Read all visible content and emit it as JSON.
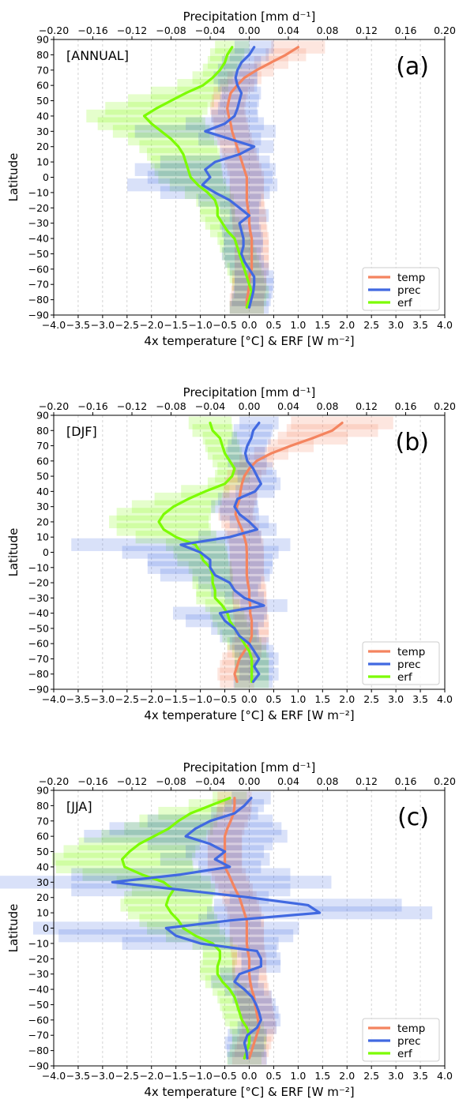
{
  "colors": {
    "temp": "#f4845f",
    "prec": "#4169e1",
    "erf": "#7cfc00",
    "grid": "#c8c8c8"
  },
  "chart_data": [
    {
      "type": "line",
      "panel_label": "(a)",
      "season_label": "[ANNUAL]",
      "xlabel": "4x temperature [°C] & ERF [W m⁻²]",
      "xlabel_top": "Precipitation [mm d⁻¹]",
      "ylabel": "Latitude",
      "xlim": [
        -4.0,
        4.0
      ],
      "xlim_top": [
        -0.2,
        0.2
      ],
      "ylim": [
        -90,
        90
      ],
      "xticks": [
        "−4.0",
        "−3.5",
        "−3.0",
        "−2.5",
        "−2.0",
        "−1.5",
        "−1.0",
        "−0.5",
        "0.0",
        "0.5",
        "1.0",
        "1.5",
        "2.0",
        "2.5",
        "3.0",
        "3.5",
        "4.0"
      ],
      "xticks_top": [
        "−0.20",
        "−0.16",
        "−0.12",
        "−0.08",
        "−0.04",
        "0.00",
        "0.04",
        "0.08",
        "0.12",
        "0.16",
        "0.20"
      ],
      "yticks": [
        "90",
        "80",
        "70",
        "60",
        "50",
        "40",
        "30",
        "20",
        "10",
        "0",
        "−10",
        "−20",
        "−30",
        "−40",
        "−50",
        "−60",
        "−70",
        "−80",
        "−90"
      ],
      "grid": "vertical dashed",
      "legend": {
        "position": "bottom-right",
        "entries": [
          "temp",
          "prec",
          "erf"
        ]
      },
      "series": [
        {
          "name": "temp",
          "axis": "bottom",
          "lat": [
            85,
            80,
            75,
            70,
            65,
            60,
            55,
            50,
            45,
            40,
            35,
            30,
            25,
            20,
            15,
            10,
            5,
            0,
            -5,
            -10,
            -15,
            -20,
            -25,
            -30,
            -35,
            -40,
            -45,
            -50,
            -55,
            -60,
            -65,
            -70,
            -75,
            -80,
            -85
          ],
          "values": [
            1.0,
            0.75,
            0.45,
            0.15,
            -0.1,
            -0.25,
            -0.38,
            -0.42,
            -0.45,
            -0.42,
            -0.38,
            -0.35,
            -0.3,
            -0.25,
            -0.2,
            -0.15,
            -0.1,
            -0.05,
            -0.05,
            -0.05,
            -0.05,
            -0.03,
            0.0,
            0.0,
            0.02,
            0.05,
            0.05,
            0.05,
            0.05,
            0.05,
            0.0,
            0.0,
            -0.02,
            -0.05,
            -0.05
          ]
        },
        {
          "name": "prec",
          "axis": "top",
          "lat": [
            85,
            80,
            75,
            70,
            65,
            60,
            55,
            50,
            45,
            40,
            35,
            30,
            25,
            20,
            15,
            10,
            5,
            0,
            -5,
            -10,
            -15,
            -20,
            -25,
            -30,
            -35,
            -40,
            -45,
            -50,
            -55,
            -60,
            -65,
            -70,
            -75,
            -80,
            -85
          ],
          "values": [
            0.005,
            0.0,
            -0.008,
            -0.012,
            -0.014,
            -0.012,
            -0.008,
            -0.01,
            -0.012,
            -0.015,
            -0.025,
            -0.045,
            -0.02,
            0.005,
            -0.01,
            -0.035,
            -0.045,
            -0.04,
            -0.048,
            -0.035,
            -0.02,
            -0.01,
            0.0,
            -0.01,
            -0.008,
            -0.006,
            -0.006,
            -0.008,
            -0.005,
            0.0,
            0.005,
            0.005,
            0.004,
            0.002,
            0.0
          ]
        },
        {
          "name": "erf",
          "axis": "bottom",
          "lat": [
            85,
            80,
            75,
            70,
            65,
            60,
            55,
            50,
            45,
            40,
            35,
            30,
            25,
            20,
            15,
            10,
            5,
            0,
            -5,
            -10,
            -15,
            -20,
            -25,
            -30,
            -35,
            -40,
            -45,
            -50,
            -55,
            -60,
            -65,
            -70,
            -75,
            -80,
            -85
          ],
          "values": [
            -0.35,
            -0.45,
            -0.5,
            -0.6,
            -0.75,
            -0.95,
            -1.3,
            -1.6,
            -1.9,
            -2.15,
            -2.0,
            -1.8,
            -1.6,
            -1.45,
            -1.35,
            -1.3,
            -1.25,
            -1.2,
            -1.05,
            -0.85,
            -0.7,
            -0.65,
            -0.65,
            -0.55,
            -0.45,
            -0.3,
            -0.25,
            -0.2,
            -0.15,
            -0.1,
            -0.05,
            0.0,
            0.05,
            0.0,
            -0.05
          ]
        }
      ]
    },
    {
      "type": "line",
      "panel_label": "(b)",
      "season_label": "[DJF]",
      "xlabel": "4x temperature [°C] & ERF [W m⁻²]",
      "xlabel_top": "Precipitation [mm d⁻¹]",
      "ylabel": "Latitude",
      "xlim": [
        -4.0,
        4.0
      ],
      "xlim_top": [
        -0.2,
        0.2
      ],
      "ylim": [
        -90,
        90
      ],
      "xticks": [
        "−4.0",
        "−3.5",
        "−3.0",
        "−2.5",
        "−2.0",
        "−1.5",
        "−1.0",
        "−0.5",
        "0.0",
        "0.5",
        "1.0",
        "1.5",
        "2.0",
        "2.5",
        "3.0",
        "3.5",
        "4.0"
      ],
      "xticks_top": [
        "−0.20",
        "−0.16",
        "−0.12",
        "−0.08",
        "−0.04",
        "0.00",
        "0.04",
        "0.08",
        "0.12",
        "0.16",
        "0.20"
      ],
      "yticks": [
        "90",
        "80",
        "70",
        "60",
        "50",
        "40",
        "30",
        "20",
        "10",
        "0",
        "−10",
        "−20",
        "−30",
        "−40",
        "−50",
        "−60",
        "−70",
        "−80",
        "−90"
      ],
      "grid": "vertical dashed",
      "legend": {
        "position": "bottom-right",
        "entries": [
          "temp",
          "prec",
          "erf"
        ]
      },
      "series": [
        {
          "name": "temp",
          "axis": "bottom",
          "lat": [
            85,
            80,
            75,
            70,
            65,
            60,
            55,
            50,
            45,
            40,
            35,
            30,
            25,
            20,
            15,
            10,
            5,
            0,
            -5,
            -10,
            -15,
            -20,
            -25,
            -30,
            -35,
            -40,
            -45,
            -50,
            -55,
            -60,
            -65,
            -70,
            -75,
            -80,
            -85
          ],
          "values": [
            1.9,
            1.7,
            1.3,
            0.85,
            0.45,
            0.15,
            0.0,
            -0.1,
            -0.15,
            -0.18,
            -0.2,
            -0.25,
            -0.28,
            -0.22,
            -0.15,
            -0.1,
            -0.06,
            -0.05,
            -0.05,
            -0.05,
            -0.05,
            -0.03,
            0.0,
            0.0,
            0.02,
            0.02,
            0.05,
            0.05,
            0.05,
            0.0,
            -0.1,
            -0.2,
            -0.25,
            -0.3,
            -0.25
          ]
        },
        {
          "name": "prec",
          "axis": "top",
          "lat": [
            85,
            80,
            75,
            70,
            65,
            60,
            55,
            50,
            45,
            40,
            35,
            30,
            25,
            20,
            15,
            10,
            5,
            0,
            -5,
            -10,
            -15,
            -20,
            -25,
            -30,
            -35,
            -40,
            -45,
            -50,
            -55,
            -60,
            -65,
            -70,
            -75,
            -80,
            -85
          ],
          "values": [
            0.01,
            0.004,
            0.002,
            -0.002,
            -0.004,
            -0.002,
            0.004,
            0.008,
            0.012,
            0.006,
            -0.012,
            -0.015,
            -0.01,
            0.0,
            0.008,
            -0.02,
            -0.07,
            -0.05,
            -0.04,
            -0.04,
            -0.035,
            -0.02,
            -0.015,
            -0.005,
            0.015,
            -0.03,
            -0.025,
            -0.015,
            -0.01,
            0.0,
            0.005,
            0.01,
            0.005,
            0.01,
            0.004
          ]
        },
        {
          "name": "erf",
          "axis": "bottom",
          "lat": [
            85,
            80,
            75,
            70,
            65,
            60,
            55,
            50,
            45,
            40,
            35,
            30,
            25,
            20,
            15,
            10,
            5,
            0,
            -5,
            -10,
            -15,
            -20,
            -25,
            -30,
            -35,
            -40,
            -45,
            -50,
            -55,
            -60,
            -65,
            -70,
            -75,
            -80,
            -85
          ],
          "values": [
            -0.8,
            -0.75,
            -0.6,
            -0.55,
            -0.5,
            -0.4,
            -0.3,
            -0.35,
            -0.5,
            -0.9,
            -1.25,
            -1.55,
            -1.75,
            -1.85,
            -1.75,
            -1.5,
            -1.1,
            -1.0,
            -0.95,
            -0.8,
            -0.75,
            -0.75,
            -0.7,
            -0.7,
            -0.55,
            -0.45,
            -0.4,
            -0.3,
            -0.2,
            -0.1,
            0.0,
            0.05,
            0.05,
            0.05,
            0.05
          ]
        }
      ]
    },
    {
      "type": "line",
      "panel_label": "(c)",
      "season_label": "[JJA]",
      "xlabel": "4x temperature [°C] & ERF [W m⁻²]",
      "xlabel_top": "Precipitation [mm d⁻¹]",
      "ylabel": "Latitude",
      "xlim": [
        -4.0,
        4.0
      ],
      "xlim_top": [
        -0.2,
        0.2
      ],
      "ylim": [
        -90,
        90
      ],
      "xticks": [
        "−4.0",
        "−3.5",
        "−3.0",
        "−2.5",
        "−2.0",
        "−1.5",
        "−1.0",
        "−0.5",
        "0.0",
        "0.5",
        "1.0",
        "1.5",
        "2.0",
        "2.5",
        "3.0",
        "3.5",
        "4.0"
      ],
      "xticks_top": [
        "−0.20",
        "−0.16",
        "−0.12",
        "−0.08",
        "−0.04",
        "0.00",
        "0.04",
        "0.08",
        "0.12",
        "0.16",
        "0.20"
      ],
      "yticks": [
        "90",
        "80",
        "70",
        "60",
        "50",
        "40",
        "30",
        "20",
        "10",
        "0",
        "−10",
        "−20",
        "−30",
        "−40",
        "−50",
        "−60",
        "−70",
        "−80",
        "−90"
      ],
      "grid": "vertical dashed",
      "legend": {
        "position": "bottom-right",
        "entries": [
          "temp",
          "prec",
          "erf"
        ]
      },
      "series": [
        {
          "name": "temp",
          "axis": "bottom",
          "lat": [
            85,
            80,
            75,
            70,
            65,
            60,
            55,
            50,
            45,
            40,
            35,
            30,
            25,
            20,
            15,
            10,
            5,
            0,
            -5,
            -10,
            -15,
            -20,
            -25,
            -30,
            -35,
            -40,
            -45,
            -50,
            -55,
            -60,
            -65,
            -70,
            -75,
            -80,
            -85
          ],
          "values": [
            -0.3,
            -0.3,
            -0.32,
            -0.38,
            -0.45,
            -0.5,
            -0.5,
            -0.5,
            -0.5,
            -0.5,
            -0.42,
            -0.35,
            -0.28,
            -0.2,
            -0.15,
            -0.1,
            -0.05,
            -0.05,
            -0.05,
            -0.05,
            -0.03,
            0.0,
            0.0,
            0.0,
            0.02,
            0.05,
            0.1,
            0.12,
            0.15,
            0.18,
            0.2,
            0.15,
            0.1,
            0.05,
            0.0
          ]
        },
        {
          "name": "prec",
          "axis": "top",
          "lat": [
            85,
            80,
            75,
            70,
            65,
            60,
            55,
            50,
            45,
            40,
            35,
            30,
            25,
            20,
            15,
            10,
            5,
            0,
            -5,
            -10,
            -15,
            -20,
            -25,
            -30,
            -35,
            -40,
            -45,
            -50,
            -55,
            -60,
            -65,
            -70,
            -75,
            -80,
            -85
          ],
          "values": [
            0.002,
            -0.005,
            -0.015,
            -0.04,
            -0.055,
            -0.065,
            -0.04,
            -0.025,
            -0.035,
            -0.02,
            -0.07,
            -0.14,
            -0.07,
            0.0,
            0.06,
            0.072,
            -0.02,
            -0.085,
            -0.075,
            -0.05,
            0.008,
            0.012,
            0.012,
            -0.01,
            -0.015,
            -0.005,
            0.003,
            0.007,
            0.01,
            0.012,
            0.008,
            -0.002,
            -0.005,
            -0.003,
            -0.002
          ]
        },
        {
          "name": "erf",
          "axis": "bottom",
          "lat": [
            85,
            80,
            75,
            70,
            65,
            60,
            55,
            50,
            45,
            40,
            35,
            30,
            25,
            20,
            15,
            10,
            5,
            0,
            -5,
            -10,
            -15,
            -20,
            -25,
            -30,
            -35,
            -40,
            -45,
            -50,
            -55,
            -60,
            -65,
            -70,
            -75,
            -80,
            -85
          ],
          "values": [
            -0.4,
            -0.8,
            -1.2,
            -1.45,
            -1.65,
            -1.95,
            -2.25,
            -2.45,
            -2.6,
            -2.55,
            -2.2,
            -1.75,
            -1.55,
            -1.65,
            -1.7,
            -1.6,
            -1.45,
            -1.35,
            -1.1,
            -0.75,
            -0.6,
            -0.6,
            -0.65,
            -0.65,
            -0.55,
            -0.4,
            -0.3,
            -0.25,
            -0.2,
            -0.15,
            -0.05,
            0.0,
            0.0,
            -0.05,
            -0.1
          ]
        }
      ]
    }
  ]
}
